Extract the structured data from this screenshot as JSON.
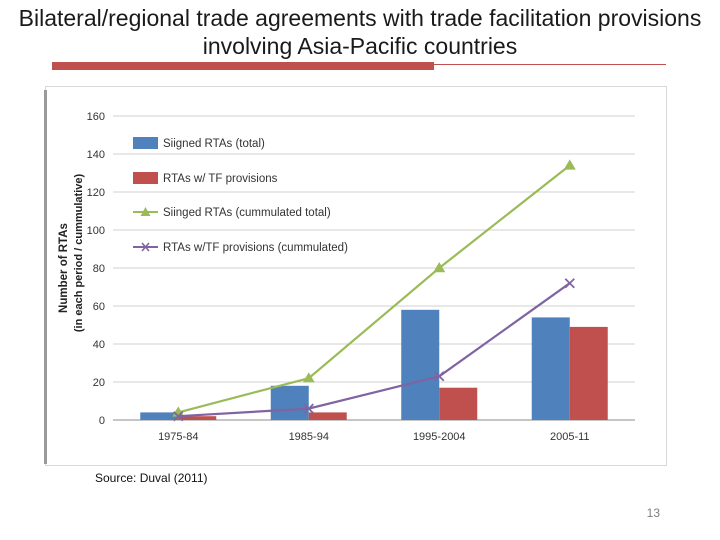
{
  "slide": {
    "title": "Bilateral/regional trade agreements with trade facilitation provisions involving Asia-Pacific countries",
    "source": "Source: Duval (2011)",
    "page_number": "13"
  },
  "colors": {
    "signed_bar": "#4f81bd",
    "tf_bar": "#c0504d",
    "signed_line": "#9bbb59",
    "tf_line": "#8064a2",
    "title_rule": "#c0504d"
  },
  "chart_data": {
    "type": "bar",
    "categories": [
      "1975-84",
      "1985-94",
      "1995-2004",
      "2005-11"
    ],
    "ylabel_line1": "Number of RTAs",
    "ylabel_line2": "(in each period / cummulative)",
    "ylim": [
      0,
      160
    ],
    "yticks": [
      0,
      20,
      40,
      60,
      80,
      100,
      120,
      140,
      160
    ],
    "grid": true,
    "legend_position": "top-left",
    "series": [
      {
        "name": "Siigned RTAs (total)",
        "kind": "bar",
        "color": "#4f81bd",
        "values": [
          4,
          18,
          58,
          54
        ]
      },
      {
        "name": "RTAs w/ TF provisions",
        "kind": "bar",
        "color": "#c0504d",
        "values": [
          2,
          4,
          17,
          49
        ]
      },
      {
        "name": "Siinged RTAs (cummulated total)",
        "kind": "line",
        "marker": "triangle",
        "color": "#9bbb59",
        "values": [
          4,
          22,
          80,
          134
        ]
      },
      {
        "name": "RTAs w/TF provisions (cummulated)",
        "kind": "line",
        "marker": "x",
        "color": "#8064a2",
        "values": [
          2,
          6,
          23,
          72
        ]
      }
    ]
  }
}
